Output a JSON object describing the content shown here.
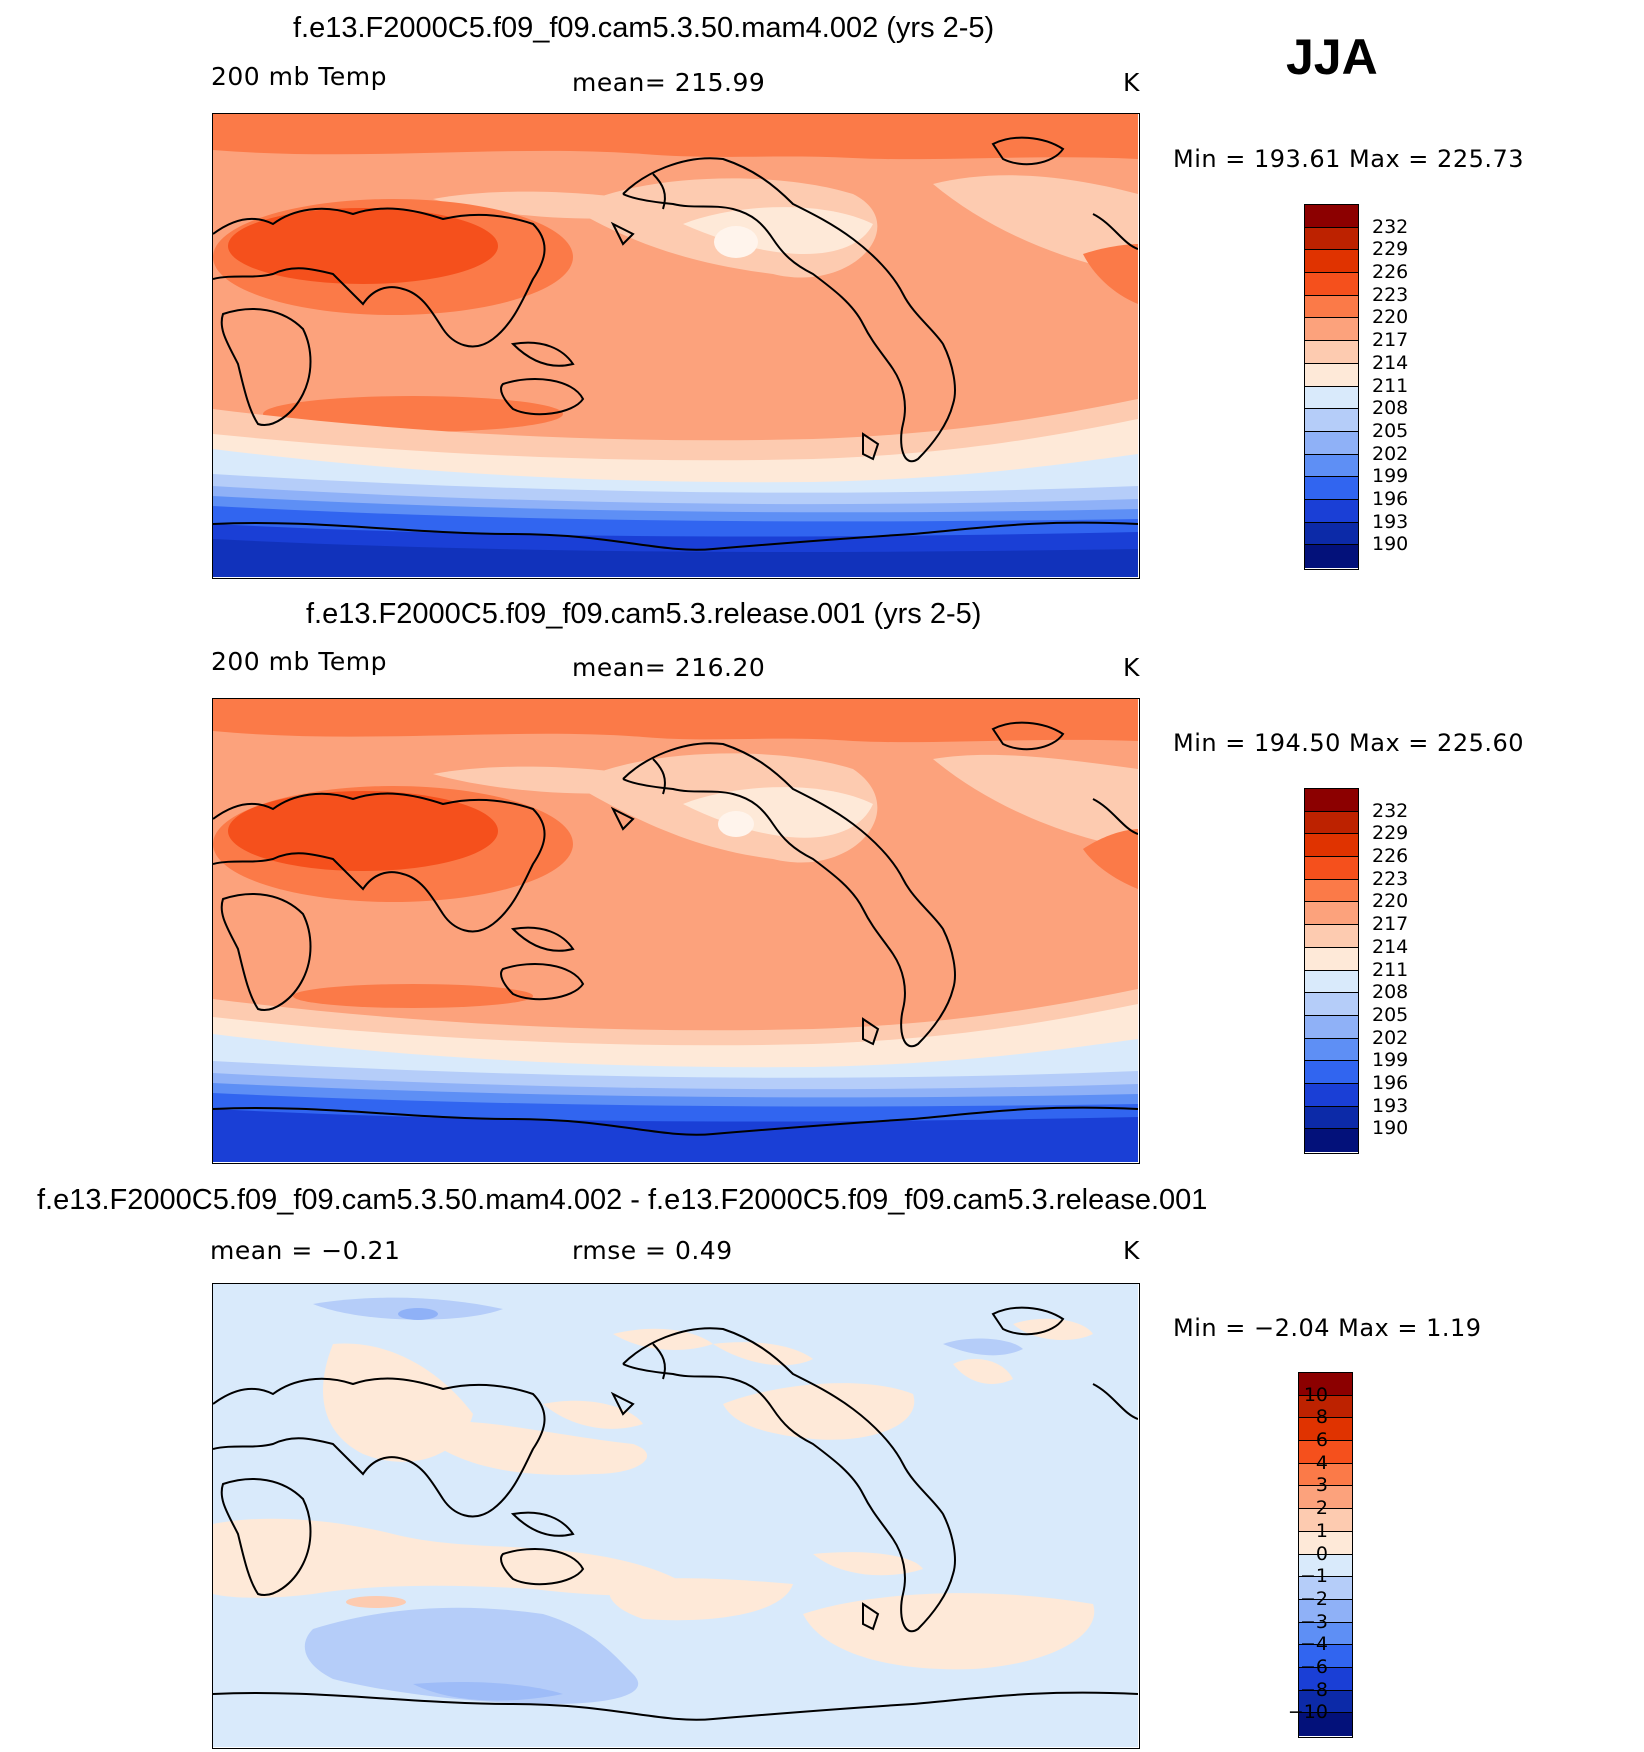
{
  "season": "JJA",
  "units": "K",
  "panels": [
    {
      "title": "f.e13.F2000C5.f09_f09.cam5.3.50.mam4.002 (yrs 2-5)",
      "left_label": "200 mb Temp",
      "center_label": "mean=  215.99",
      "units": "K",
      "minmax": "Min  =  193.61  Max  =  225.73"
    },
    {
      "title": "f.e13.F2000C5.f09_f09.cam5.3.release.001 (yrs 2-5)",
      "left_label": "200 mb Temp",
      "center_label": "mean=  216.20",
      "units": "K",
      "minmax": "Min  =  194.50  Max  =  225.60"
    },
    {
      "title": "f.e13.F2000C5.f09_f09.cam5.3.50.mam4.002 - f.e13.F2000C5.f09_f09.cam5.3.release.001",
      "left_label": "mean  =    −0.21",
      "center_label": "rmse  =     0.49",
      "units": "K",
      "minmax": "Min  =    −2.04  Max  =     1.19"
    }
  ],
  "colorbar_temp": {
    "labels": [
      "232",
      "229",
      "226",
      "223",
      "220",
      "217",
      "214",
      "211",
      "208",
      "205",
      "202",
      "199",
      "196",
      "193",
      "190"
    ],
    "colors": [
      "#8c0000",
      "#bd2200",
      "#e03300",
      "#f5501c",
      "#fb7a48",
      "#fca27c",
      "#fdcbb0",
      "#fee9d8",
      "#d9eafb",
      "#b5cdf9",
      "#8fb1f7",
      "#5e8ff5",
      "#3165f0",
      "#1a3fd6",
      "#0c2aa8",
      "#03117a"
    ]
  },
  "colorbar_diff": {
    "labels": [
      "10",
      "8",
      "6",
      "4",
      "3",
      "2",
      "1",
      "0",
      "−1",
      "−2",
      "−3",
      "−4",
      "−6",
      "−8",
      "−10"
    ],
    "colors": [
      "#8c0000",
      "#bd2200",
      "#e03300",
      "#f5501c",
      "#fb7a48",
      "#fca27c",
      "#fdcbb0",
      "#fee9d8",
      "#d9eafb",
      "#b5cdf9",
      "#8fb1f7",
      "#5e8ff5",
      "#3165f0",
      "#1a3fd6",
      "#0c2aa8",
      "#03117a"
    ]
  }
}
